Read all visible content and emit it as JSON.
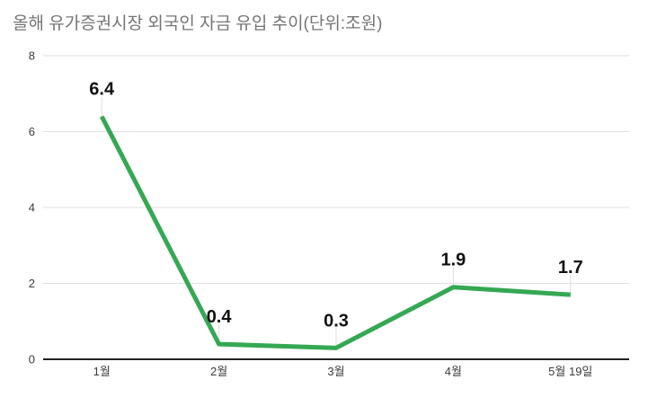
{
  "header": {
    "title": "올해 유가증권시장 외국인 자금 유입 추이(단위:조원)"
  },
  "chart_data": {
    "type": "line",
    "title": "올해 유가증권시장 외국인 자금 유입 추이(단위:조원)",
    "categories": [
      "1월",
      "2월",
      "3월",
      "4월",
      "5월 19일"
    ],
    "values": [
      6.4,
      0.4,
      0.3,
      1.9,
      1.7
    ],
    "data_labels": [
      "6.4",
      "0.4",
      "0.3",
      "1.9",
      "1.7"
    ],
    "xlabel": "",
    "ylabel": "",
    "unit": "조원",
    "ylim": [
      0,
      8
    ],
    "yticks": [
      0,
      2,
      4,
      6,
      8
    ],
    "grid": true,
    "legend_position": "none",
    "colors": {
      "line": "#34a853",
      "gridline": "#e0e0e0",
      "axis_line": "#212121",
      "tick_label": "#3c3c3c",
      "data_label": "#111111",
      "annotation_stem": "#dedede",
      "title": "#757575",
      "background": "#ffffff"
    }
  }
}
